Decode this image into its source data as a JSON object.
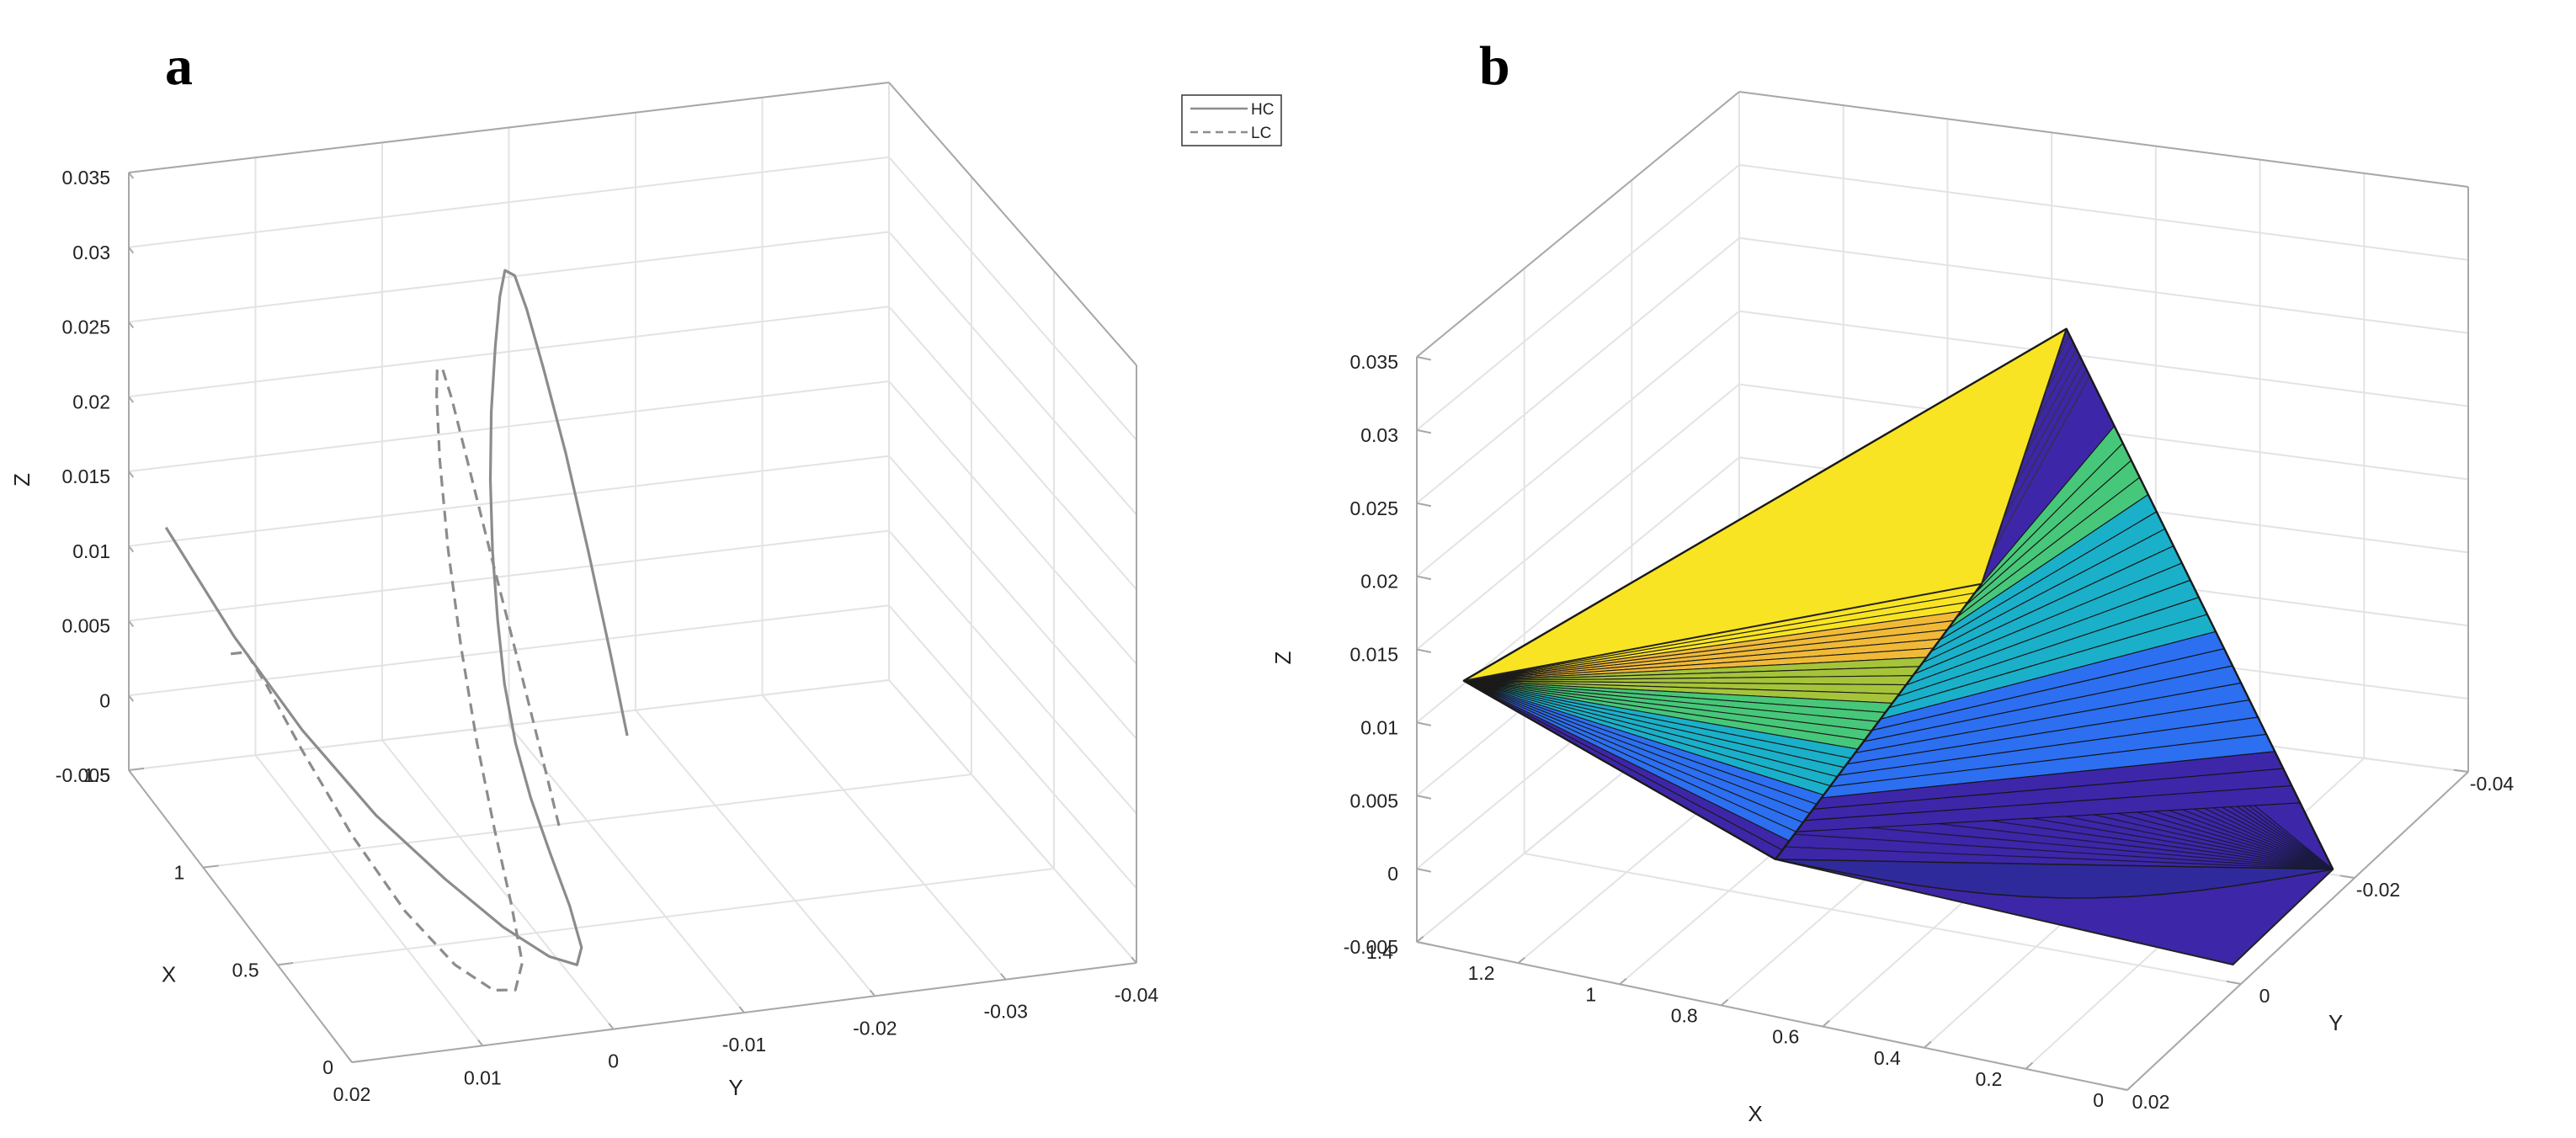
{
  "figure": {
    "panel_labels": [
      "a",
      "b"
    ]
  },
  "chart_data": [
    {
      "type": "line",
      "panel": "a",
      "title": "",
      "xlabel": "X",
      "ylabel": "Y",
      "zlabel": "Z",
      "xlim": [
        0,
        1.5
      ],
      "ylim": [
        0.02,
        -0.04
      ],
      "zlim": [
        -0.005,
        0.035
      ],
      "x_ticks": [
        "0",
        "0.5",
        "1",
        "1.5"
      ],
      "y_ticks": [
        "0.02",
        "0.01",
        "0",
        "-0.01",
        "-0.02",
        "-0.03",
        "-0.04"
      ],
      "z_ticks": [
        "-0.005",
        "0",
        "0.005",
        "0.01",
        "0.015",
        "0.02",
        "0.025",
        "0.03",
        "0.035"
      ],
      "grid": true,
      "legend": {
        "placement": "top-right",
        "entries": [
          "HC",
          "LC"
        ]
      },
      "series": [
        {
          "name": "HC",
          "style": "solid",
          "color": "#8c8c8c",
          "points": [
            [
              1.25,
              0.02,
              0.0145
            ],
            [
              1.05,
              0.017,
              0.0095
            ],
            [
              0.85,
              0.014,
              0.0055
            ],
            [
              0.62,
              0.011,
              0.0025
            ],
            [
              0.42,
              0.008,
              0.0005
            ],
            [
              0.25,
              0.0055,
              -0.0008
            ],
            [
              0.12,
              0.0035,
              -0.0013
            ],
            [
              0.05,
              0.0022,
              -0.0011
            ],
            [
              0.08,
              0.0015,
              -0.0004
            ],
            [
              0.2,
              0.001,
              0.0008
            ],
            [
              0.36,
              0.0006,
              0.0022
            ],
            [
              0.52,
              0.0002,
              0.0038
            ],
            [
              0.66,
              -0.0003,
              0.0056
            ],
            [
              0.79,
              -0.001,
              0.0078
            ],
            [
              0.9,
              -0.0018,
              0.0105
            ],
            [
              1.0,
              -0.0026,
              0.0138
            ],
            [
              1.08,
              -0.0034,
              0.0175
            ],
            [
              1.14,
              -0.0042,
              0.0212
            ],
            [
              1.18,
              -0.005,
              0.025
            ],
            [
              1.2,
              -0.0056,
              0.028
            ],
            [
              1.2,
              -0.006,
              0.0297
            ],
            [
              1.17,
              -0.0064,
              0.0297
            ],
            [
              1.11,
              -0.0066,
              0.0282
            ],
            [
              1.01,
              -0.0067,
              0.0255
            ],
            [
              0.86,
              -0.0066,
              0.0218
            ],
            [
              0.68,
              -0.0062,
              0.0175
            ],
            [
              0.5,
              -0.0057,
              0.0132
            ],
            [
              0.34,
              -0.0051,
              0.0097
            ]
          ]
        },
        {
          "name": "LC",
          "style": "dashed",
          "color": "#8c8c8c",
          "points": [
            [
              0.9,
              0.019,
              0.0105
            ],
            [
              0.85,
              0.0184,
              0.0112
            ],
            [
              0.78,
              0.0176,
              0.0098
            ],
            [
              0.66,
              0.0162,
              0.0068
            ],
            [
              0.5,
              0.0142,
              0.003
            ],
            [
              0.34,
              0.012,
              -0.0002
            ],
            [
              0.2,
              0.0098,
              -0.0022
            ],
            [
              0.1,
              0.008,
              -0.0028
            ],
            [
              0.06,
              0.0068,
              -0.0024
            ],
            [
              0.1,
              0.0058,
              -0.0012
            ],
            [
              0.24,
              0.005,
              0.0008
            ],
            [
              0.42,
              0.0042,
              0.0035
            ],
            [
              0.6,
              0.0034,
              0.0068
            ],
            [
              0.78,
              0.0025,
              0.0108
            ],
            [
              0.94,
              0.0016,
              0.0152
            ],
            [
              1.06,
              0.0008,
              0.0195
            ],
            [
              1.13,
              0.0002,
              0.0228
            ],
            [
              1.16,
              -0.0002,
              0.0242
            ],
            [
              1.15,
              -0.0005,
              0.0243
            ],
            [
              1.1,
              -0.0006,
              0.023
            ],
            [
              1.0,
              -0.0006,
              0.0202
            ],
            [
              0.84,
              -0.0005,
              0.016
            ],
            [
              0.64,
              -0.0003,
              0.0112
            ],
            [
              0.46,
              0.0,
              0.0072
            ],
            [
              0.32,
              0.0003,
              0.0042
            ]
          ]
        }
      ]
    },
    {
      "type": "area",
      "panel": "b",
      "title": "",
      "xlabel": "X",
      "ylabel": "Y",
      "zlabel": "Z",
      "xlim": [
        0,
        1.4
      ],
      "ylim": [
        0.02,
        -0.04
      ],
      "zlim": [
        -0.005,
        0.035
      ],
      "x_ticks": [
        "0",
        "0.2",
        "0.4",
        "0.6",
        "0.8",
        "1",
        "1.2",
        "1.4"
      ],
      "y_ticks": [
        "0.02",
        "0",
        "-0.02",
        "-0.04"
      ],
      "z_ticks": [
        "-0.005",
        "0",
        "0.005",
        "0.01",
        "0.015",
        "0.02",
        "0.025",
        "0.03",
        "0.035"
      ],
      "grid": true,
      "colormap": [
        "#3e26a8",
        "#2c6ff1",
        "#1ab0c9",
        "#47c779",
        "#a6c43a",
        "#f0ba38",
        "#f9e423"
      ],
      "vertices": {
        "apex": [
          0.45,
          -0.01,
          0.0335
        ],
        "left": [
          1.35,
          0.016,
          0.012
        ],
        "top_inner": [
          0.55,
          -0.004,
          0.0175
        ],
        "bottom_inner": [
          0.78,
          0.012,
          0.0025
        ],
        "right_tip": [
          0.02,
          -0.018,
          -0.0038
        ],
        "bottom_curve": [
          0.06,
          -0.004,
          -0.0055
        ]
      }
    }
  ]
}
